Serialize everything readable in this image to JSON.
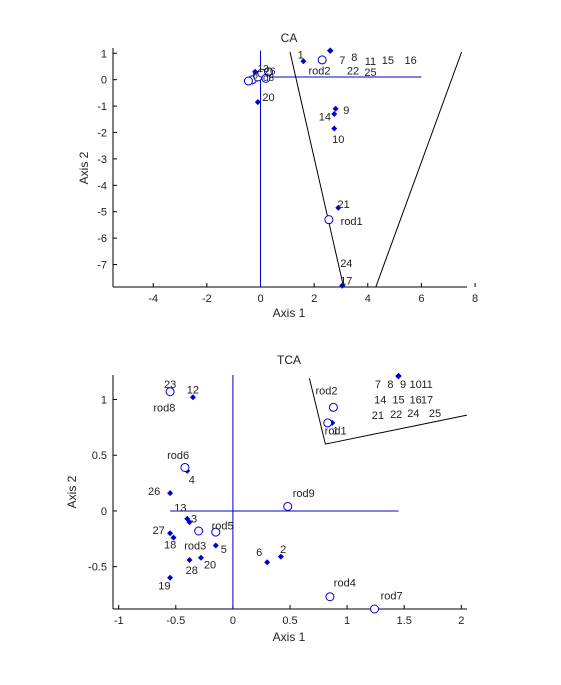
{
  "chart_data": [
    {
      "type": "scatter",
      "title": "CA",
      "xlabel": "Axis 1",
      "ylabel": "Axis 2",
      "xlim": [
        -5.5,
        7.7
      ],
      "ylim": [
        -7.85,
        1.2
      ],
      "xticks": [
        -4,
        -2,
        0,
        2,
        4,
        6,
        8
      ],
      "yticks": [
        1,
        0,
        -1,
        -2,
        -3,
        -4,
        -5,
        -6,
        -7
      ],
      "grid": false,
      "legend": "none",
      "colors": {
        "point": "#0000cc",
        "axis_line": "#0000cc",
        "hull": "#000000",
        "text": "#222222"
      },
      "cross_lines": {
        "h": {
          "y": 0.1,
          "x_from": 0,
          "x_to": 6.0
        },
        "v": {
          "x": 0,
          "y_from": 1.1,
          "y_to": -7.85
        }
      },
      "points": [
        {
          "x": 1.6,
          "y": 0.7,
          "label": "1",
          "lx": 1.5,
          "ly": 0.95
        },
        {
          "x": 2.6,
          "y": 1.1,
          "label": "7",
          "lx": 3.05,
          "ly": 0.75
        },
        {
          "x": 2.6,
          "y": 1.1,
          "label": "8",
          "lx": 3.5,
          "ly": 0.85
        },
        {
          "x": 2.6,
          "y": 1.1,
          "label": "11",
          "lx": 4.1,
          "ly": 0.7
        },
        {
          "x": 2.6,
          "y": 1.1,
          "label": "15",
          "lx": 4.75,
          "ly": 0.75
        },
        {
          "x": 2.6,
          "y": 1.1,
          "label": "16",
          "lx": 5.6,
          "ly": 0.75
        },
        {
          "x": 2.6,
          "y": 1.1,
          "label": "22",
          "lx": 3.45,
          "ly": 0.35
        },
        {
          "x": 2.6,
          "y": 1.1,
          "label": "25",
          "lx": 4.1,
          "ly": 0.3
        },
        {
          "x": 2.8,
          "y": -1.1,
          "label": "9",
          "lx": 3.2,
          "ly": -1.15
        },
        {
          "x": 2.75,
          "y": -1.3,
          "label": "14",
          "lx": 2.4,
          "ly": -1.4
        },
        {
          "x": 2.75,
          "y": -1.85,
          "label": "10",
          "lx": 2.9,
          "ly": -2.25
        },
        {
          "x": 2.9,
          "y": -4.85,
          "label": "21",
          "lx": 3.1,
          "ly": -4.7
        },
        {
          "x": 3.05,
          "y": -7.8,
          "label": "24",
          "lx": 3.2,
          "ly": -6.95
        },
        {
          "x": 3.05,
          "y": -7.8,
          "label": "17",
          "lx": 3.2,
          "ly": -7.6
        },
        {
          "x": -0.1,
          "y": -0.85,
          "label": "20",
          "lx": 0.3,
          "ly": -0.65
        },
        {
          "x": -0.2,
          "y": 0.3,
          "label": "",
          "lx": 0,
          "ly": 0
        },
        {
          "x": -0.1,
          "y": 0.15,
          "label": "",
          "lx": 0,
          "ly": 0
        },
        {
          "x": 0.1,
          "y": 0.2,
          "label": "",
          "lx": 0,
          "ly": 0
        },
        {
          "x": -0.25,
          "y": 0.05,
          "label": "",
          "lx": 0,
          "ly": 0
        },
        {
          "x": 0.15,
          "y": 0.3,
          "label": "",
          "lx": 0,
          "ly": 0
        }
      ],
      "rods": [
        {
          "x": 2.3,
          "y": 0.75,
          "label": "rod2",
          "lx": 2.2,
          "ly": 0.35
        },
        {
          "x": 2.55,
          "y": -5.3,
          "label": "rod1",
          "lx": 3.4,
          "ly": -5.35
        },
        {
          "x": -0.3,
          "y": 0.0,
          "label": "",
          "lx": 0,
          "ly": 0
        },
        {
          "x": -0.1,
          "y": 0.1,
          "label": "",
          "lx": 0,
          "ly": 0
        },
        {
          "x": 0.05,
          "y": 0.25,
          "label": "",
          "lx": 0,
          "ly": 0
        },
        {
          "x": -0.45,
          "y": -0.05,
          "label": "",
          "lx": 0,
          "ly": 0
        },
        {
          "x": 0.2,
          "y": 0.05,
          "label": "",
          "lx": 0,
          "ly": 0
        },
        {
          "x": 0.3,
          "y": 0.3,
          "label": "",
          "lx": 0,
          "ly": 0
        }
      ],
      "cluster_labels": [
        {
          "text": "13",
          "x": 0.1,
          "y": 0.45
        },
        {
          "text": "26",
          "x": 0.35,
          "y": 0.35
        },
        {
          "text": "6",
          "x": -0.2,
          "y": 0.2
        },
        {
          "text": "d8",
          "x": 0.3,
          "y": 0.1
        }
      ],
      "hull": [
        [
          1.1,
          1.05
        ],
        [
          3.1,
          -7.85
        ],
        [
          4.3,
          -7.85
        ],
        [
          7.5,
          1.05
        ]
      ]
    },
    {
      "type": "scatter",
      "title": "TCA",
      "xlabel": "Axis 1",
      "ylabel": "Axis 2",
      "xlim": [
        -1.05,
        2.05
      ],
      "ylim": [
        -0.88,
        1.22
      ],
      "xticks": [
        -1,
        -0.5,
        0,
        0.5,
        1,
        1.5,
        2
      ],
      "yticks": [
        1,
        0.5,
        0,
        -0.5
      ],
      "grid": false,
      "legend": "none",
      "colors": {
        "point": "#0000cc",
        "axis_line": "#0000cc",
        "hull": "#000000",
        "text": "#222222"
      },
      "cross_lines": {
        "h": {
          "y": 0.0,
          "x_from": -0.55,
          "x_to": 1.45
        },
        "v": {
          "x": 0,
          "y_from": 1.22,
          "y_to": -0.88
        }
      },
      "points": [
        {
          "x": -0.55,
          "y": 1.08,
          "label": "23",
          "lx": -0.55,
          "ly": 1.14
        },
        {
          "x": -0.35,
          "y": 1.02,
          "label": "12",
          "lx": -0.35,
          "ly": 1.09
        },
        {
          "x": -0.4,
          "y": 0.36,
          "label": "4",
          "lx": -0.36,
          "ly": 0.28
        },
        {
          "x": -0.55,
          "y": 0.16,
          "label": "26",
          "lx": -0.69,
          "ly": 0.18
        },
        {
          "x": -0.4,
          "y": -0.07,
          "label": "13",
          "lx": -0.46,
          "ly": 0.03
        },
        {
          "x": -0.38,
          "y": -0.1,
          "label": "3",
          "lx": -0.34,
          "ly": -0.07
        },
        {
          "x": -0.55,
          "y": -0.2,
          "label": "27",
          "lx": -0.65,
          "ly": -0.17
        },
        {
          "x": -0.52,
          "y": -0.24,
          "label": "18",
          "lx": -0.55,
          "ly": -0.3
        },
        {
          "x": -0.15,
          "y": -0.31,
          "label": "5",
          "lx": -0.08,
          "ly": -0.34
        },
        {
          "x": -0.28,
          "y": -0.42,
          "label": "20",
          "lx": -0.2,
          "ly": -0.48
        },
        {
          "x": -0.38,
          "y": -0.44,
          "label": "28",
          "lx": -0.36,
          "ly": -0.53
        },
        {
          "x": -0.55,
          "y": -0.6,
          "label": "19",
          "lx": -0.6,
          "ly": -0.67
        },
        {
          "x": 0.3,
          "y": -0.46,
          "label": "6",
          "lx": 0.23,
          "ly": -0.37
        },
        {
          "x": 0.42,
          "y": -0.41,
          "label": "2",
          "lx": 0.44,
          "ly": -0.34
        },
        {
          "x": 1.45,
          "y": 1.21,
          "label": "7",
          "lx": 1.27,
          "ly": 1.14
        },
        {
          "x": 1.45,
          "y": 1.21,
          "label": "8",
          "lx": 1.38,
          "ly": 1.14
        },
        {
          "x": 1.45,
          "y": 1.21,
          "label": "9",
          "lx": 1.49,
          "ly": 1.14
        },
        {
          "x": 1.45,
          "y": 1.21,
          "label": "10",
          "lx": 1.6,
          "ly": 1.14
        },
        {
          "x": 1.45,
          "y": 1.21,
          "label": "11",
          "lx": 1.7,
          "ly": 1.14
        },
        {
          "x": 1.45,
          "y": 1.21,
          "label": "14",
          "lx": 1.29,
          "ly": 1.0
        },
        {
          "x": 1.45,
          "y": 1.21,
          "label": "15",
          "lx": 1.45,
          "ly": 1.0
        },
        {
          "x": 1.45,
          "y": 1.21,
          "label": "16",
          "lx": 1.6,
          "ly": 1.0
        },
        {
          "x": 1.45,
          "y": 1.21,
          "label": "17",
          "lx": 1.7,
          "ly": 1.0
        },
        {
          "x": 1.45,
          "y": 1.21,
          "label": "21",
          "lx": 1.27,
          "ly": 0.86
        },
        {
          "x": 1.45,
          "y": 1.21,
          "label": "22",
          "lx": 1.43,
          "ly": 0.87
        },
        {
          "x": 1.45,
          "y": 1.21,
          "label": "24",
          "lx": 1.58,
          "ly": 0.88
        },
        {
          "x": 1.45,
          "y": 1.21,
          "label": "25",
          "lx": 1.77,
          "ly": 0.88
        },
        {
          "x": 0.87,
          "y": 0.79,
          "label": "1",
          "lx": 0.9,
          "ly": 0.72
        }
      ],
      "rods": [
        {
          "x": -0.55,
          "y": 1.07,
          "label": "rod8",
          "lx": -0.6,
          "ly": 0.93
        },
        {
          "x": -0.42,
          "y": 0.39,
          "label": "rod6",
          "lx": -0.48,
          "ly": 0.5
        },
        {
          "x": -0.3,
          "y": -0.18,
          "label": "rod3",
          "lx": -0.33,
          "ly": -0.31
        },
        {
          "x": -0.15,
          "y": -0.19,
          "label": "rod5",
          "lx": -0.09,
          "ly": -0.13
        },
        {
          "x": 0.48,
          "y": 0.04,
          "label": "rod9",
          "lx": 0.62,
          "ly": 0.16
        },
        {
          "x": 0.88,
          "y": 0.93,
          "label": "rod2",
          "lx": 0.82,
          "ly": 1.08
        },
        {
          "x": 0.83,
          "y": 0.79,
          "label": "rod1",
          "lx": 0.9,
          "ly": 0.72
        },
        {
          "x": 0.85,
          "y": -0.77,
          "label": "rod4",
          "lx": 0.98,
          "ly": -0.64
        },
        {
          "x": 1.24,
          "y": -0.88,
          "label": "rod7",
          "lx": 1.39,
          "ly": -0.76
        }
      ],
      "cluster_labels": [],
      "hull": [
        [
          0.67,
          1.19
        ],
        [
          0.81,
          0.6
        ],
        [
          2.05,
          0.86
        ]
      ]
    }
  ]
}
